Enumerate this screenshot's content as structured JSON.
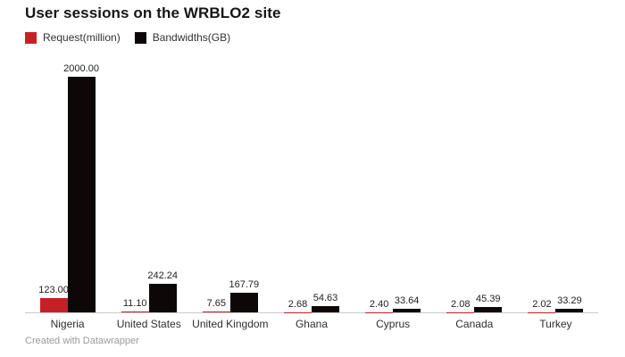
{
  "header": {
    "title": "User sessions on the WRBLO2 site"
  },
  "footer": {
    "credit": "Created with Datawrapper"
  },
  "colors": {
    "request": "#c42127",
    "bandwidth": "#0e0708",
    "axis": "#c9c9c9"
  },
  "chart_data": {
    "type": "bar",
    "title": "User sessions on the WRBLO2 site",
    "categories": [
      "Nigeria",
      "United States",
      "United Kingdom",
      "Ghana",
      "Cyprus",
      "Canada",
      "Turkey"
    ],
    "series": [
      {
        "name": "Request(million)",
        "color": "#c42127",
        "values": [
          123.0,
          11.1,
          7.65,
          2.68,
          2.4,
          2.08,
          2.02
        ],
        "labels": [
          "123.00",
          "11.10",
          "7.65",
          "2.68",
          "2.40",
          "2.08",
          "2.02"
        ]
      },
      {
        "name": "Bandwidths(GB)",
        "color": "#0e0708",
        "values": [
          2000.0,
          242.24,
          167.79,
          54.63,
          33.64,
          45.39,
          33.29
        ],
        "labels": [
          "2000.00",
          "242.24",
          "167.79",
          "54.63",
          "33.64",
          "45.39",
          "33.29"
        ]
      }
    ],
    "xlabel": "",
    "ylabel": "",
    "ylim": [
      0,
      2000
    ],
    "grid": false,
    "legend_position": "top-left",
    "value_labels_shown": true
  }
}
